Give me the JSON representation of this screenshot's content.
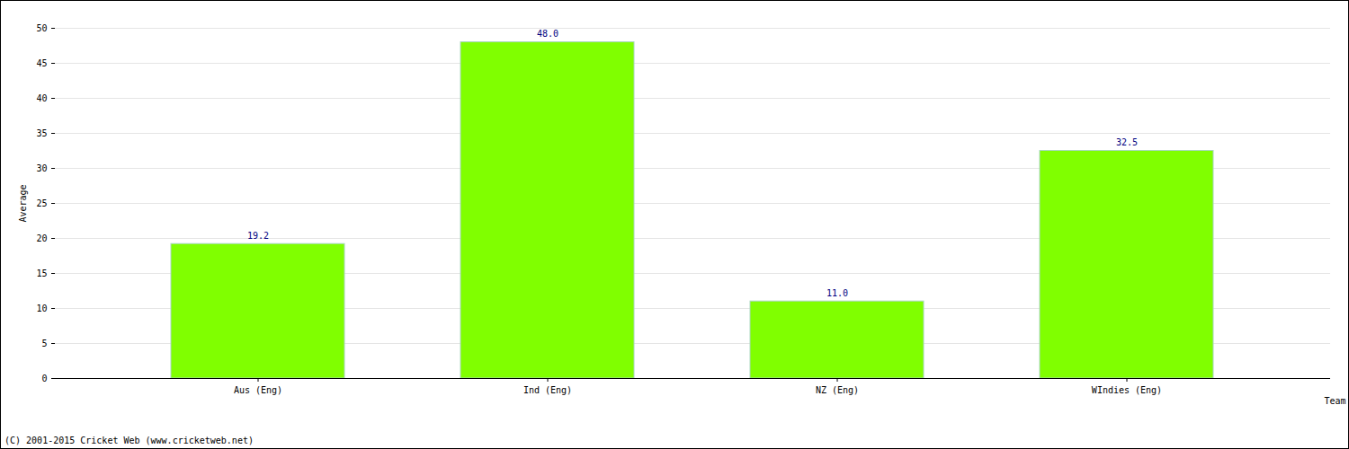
{
  "chart_data": {
    "type": "bar",
    "categories": [
      "Aus (Eng)",
      "Ind (Eng)",
      "NZ (Eng)",
      "WIndies (Eng)"
    ],
    "values": [
      19.2,
      48.0,
      11.0,
      32.5
    ],
    "value_labels": [
      "19.2",
      "48.0",
      "11.0",
      "32.5"
    ],
    "data_labels": true,
    "color": "#80ff00",
    "xlabel": "Team",
    "ylabel": "Average",
    "ylim": [
      0,
      50
    ],
    "yticks": [
      0,
      5,
      10,
      15,
      20,
      25,
      30,
      35,
      40,
      45,
      50
    ],
    "grid": true,
    "caption": "(C) 2001-2015 Cricket Web (www.cricketweb.net)"
  }
}
